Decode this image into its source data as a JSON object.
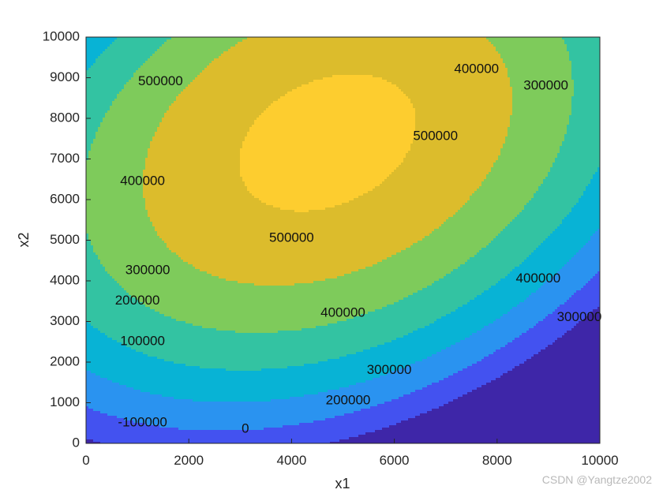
{
  "chart_data": {
    "type": "contour",
    "title": "",
    "xlabel": "x1",
    "ylabel": "x2",
    "xlim": [
      0,
      10000
    ],
    "ylim": [
      0,
      10000
    ],
    "xticks": [
      0,
      2000,
      4000,
      6000,
      8000,
      10000
    ],
    "yticks": [
      0,
      1000,
      2000,
      3000,
      4000,
      5000,
      6000,
      7000,
      8000,
      9000,
      10000
    ],
    "levels": [
      -100000,
      0,
      100000,
      200000,
      300000,
      400000,
      500000
    ],
    "level_labels": [
      {
        "text": "500000",
        "x": 1450,
        "y": 8900
      },
      {
        "text": "500000",
        "x": 6800,
        "y": 7550
      },
      {
        "text": "500000",
        "x": 4000,
        "y": 5050
      },
      {
        "text": "400000",
        "x": 7600,
        "y": 9200
      },
      {
        "text": "400000",
        "x": 1100,
        "y": 6450
      },
      {
        "text": "400000",
        "x": 8800,
        "y": 4050
      },
      {
        "text": "400000",
        "x": 5000,
        "y": 3200
      },
      {
        "text": "300000",
        "x": 8950,
        "y": 8800
      },
      {
        "text": "300000",
        "x": 1200,
        "y": 4250
      },
      {
        "text": "300000",
        "x": 9600,
        "y": 3100
      },
      {
        "text": "300000",
        "x": 5900,
        "y": 1800
      },
      {
        "text": "200000",
        "x": 1000,
        "y": 3500
      },
      {
        "text": "200000",
        "x": 5100,
        "y": 1050
      },
      {
        "text": "100000",
        "x": 1100,
        "y": 2500
      },
      {
        "text": "-100000",
        "x": 1100,
        "y": 500
      },
      {
        "text": "0",
        "x": 3100,
        "y": 350
      }
    ],
    "colormap": [
      "#3e26a8",
      "#4352f0",
      "#2a93f0",
      "#08b3d5",
      "#33c3a2",
      "#7ecb5b",
      "#dcbc2c",
      "#fdcd2f",
      "#f7f719"
    ]
  },
  "watermark": "CSDN @Yangtze2002"
}
